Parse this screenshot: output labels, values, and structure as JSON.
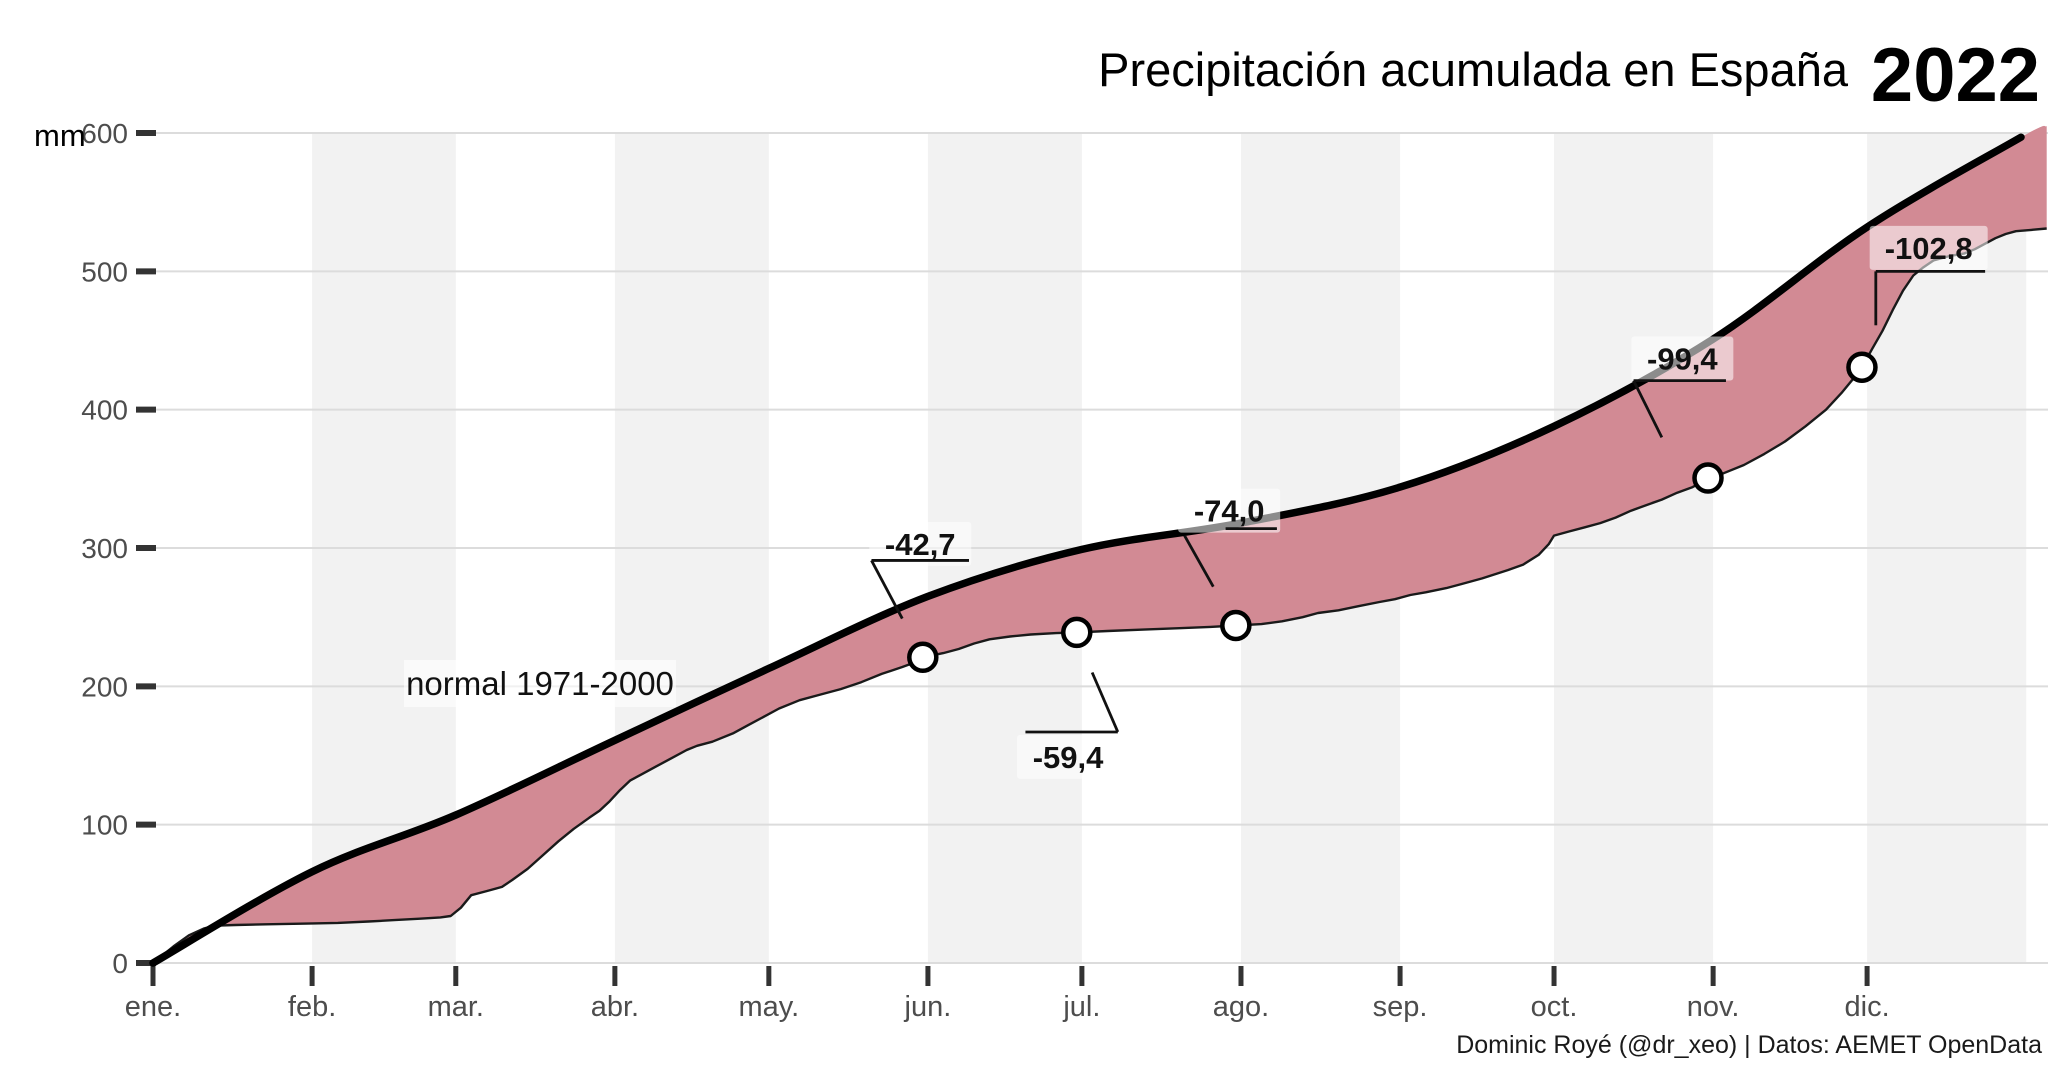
{
  "header": {
    "title": "Precipitación acumulada en España",
    "year": "2022"
  },
  "attribution": "Dominic Royé (@dr_xeo) | Datos: AEMET OpenData",
  "chart_data": {
    "type": "area",
    "title": "Precipitación acumulada en España 2022",
    "ylabel": "mm",
    "ylim": [
      0,
      600
    ],
    "y_ticks": [
      0,
      100,
      200,
      300,
      400,
      500,
      600
    ],
    "x_months": [
      {
        "label": "ene.",
        "start": 0,
        "shaded": false
      },
      {
        "label": "feb.",
        "start": 31,
        "shaded": true
      },
      {
        "label": "mar.",
        "start": 59,
        "shaded": false
      },
      {
        "label": "abr.",
        "start": 90,
        "shaded": true
      },
      {
        "label": "may.",
        "start": 120,
        "shaded": false
      },
      {
        "label": "jun.",
        "start": 151,
        "shaded": true
      },
      {
        "label": "jul.",
        "start": 181,
        "shaded": false
      },
      {
        "label": "ago.",
        "start": 212,
        "shaded": true
      },
      {
        "label": "sep.",
        "start": 243,
        "shaded": false
      },
      {
        "label": "oct.",
        "start": 273,
        "shaded": true
      },
      {
        "label": "nov.",
        "start": 304,
        "shaded": false
      },
      {
        "label": "dic.",
        "start": 334,
        "shaded": true
      }
    ],
    "year_end_day": 365,
    "normal_label": "normal 1971-2000",
    "series": [
      {
        "name": "normal 1971-2000",
        "line_end_day": 364,
        "points": [
          [
            0,
            0
          ],
          [
            31,
            66
          ],
          [
            59,
            107
          ],
          [
            90,
            161
          ],
          [
            120,
            213
          ],
          [
            151,
            265
          ],
          [
            181,
            299
          ],
          [
            212,
            318
          ],
          [
            243,
            344
          ],
          [
            273,
            388
          ],
          [
            304,
            451
          ],
          [
            334,
            532
          ],
          [
            364,
            597
          ],
          [
            369,
            605
          ]
        ]
      },
      {
        "name": "2022",
        "points": [
          [
            0,
            0
          ],
          [
            2,
            6
          ],
          [
            4,
            12
          ],
          [
            7,
            20
          ],
          [
            10,
            25
          ],
          [
            12,
            27
          ],
          [
            16,
            27.5
          ],
          [
            22,
            28
          ],
          [
            30,
            28.5
          ],
          [
            36,
            29
          ],
          [
            42,
            30
          ],
          [
            47,
            31
          ],
          [
            52,
            32
          ],
          [
            56,
            33
          ],
          [
            58,
            34
          ],
          [
            60,
            40
          ],
          [
            62,
            49
          ],
          [
            65,
            52
          ],
          [
            68,
            55
          ],
          [
            70,
            60
          ],
          [
            73,
            68
          ],
          [
            76,
            78
          ],
          [
            79,
            88
          ],
          [
            82,
            97
          ],
          [
            85,
            105
          ],
          [
            87,
            110
          ],
          [
            89,
            117
          ],
          [
            91,
            125
          ],
          [
            93,
            132
          ],
          [
            95,
            136
          ],
          [
            98,
            142
          ],
          [
            101,
            148
          ],
          [
            104,
            154
          ],
          [
            106,
            157
          ],
          [
            109,
            160
          ],
          [
            113,
            166
          ],
          [
            116,
            172
          ],
          [
            119,
            178
          ],
          [
            122,
            184
          ],
          [
            126,
            190
          ],
          [
            130,
            194
          ],
          [
            134,
            198
          ],
          [
            138,
            203
          ],
          [
            142,
            209
          ],
          [
            146,
            214
          ],
          [
            149,
            218
          ],
          [
            150,
            221
          ],
          [
            154,
            224
          ],
          [
            157,
            227
          ],
          [
            160,
            231
          ],
          [
            163,
            234
          ],
          [
            167,
            236
          ],
          [
            171,
            237.5
          ],
          [
            176,
            238.5
          ],
          [
            180,
            239
          ],
          [
            186,
            240
          ],
          [
            193,
            241
          ],
          [
            200,
            242
          ],
          [
            206,
            243
          ],
          [
            211,
            244
          ],
          [
            216,
            245
          ],
          [
            220,
            247
          ],
          [
            224,
            250
          ],
          [
            227,
            253
          ],
          [
            231,
            255
          ],
          [
            235,
            258
          ],
          [
            239,
            261
          ],
          [
            242,
            263
          ],
          [
            245,
            266
          ],
          [
            248,
            268
          ],
          [
            252,
            271
          ],
          [
            255,
            274
          ],
          [
            259,
            278
          ],
          [
            264,
            284
          ],
          [
            267,
            288
          ],
          [
            270,
            295
          ],
          [
            272,
            303
          ],
          [
            273,
            309
          ],
          [
            276,
            312
          ],
          [
            279,
            315
          ],
          [
            282,
            318
          ],
          [
            285,
            322
          ],
          [
            288,
            327
          ],
          [
            291,
            331
          ],
          [
            294,
            335
          ],
          [
            297,
            340
          ],
          [
            300,
            344
          ],
          [
            302,
            348
          ],
          [
            303,
            350.6
          ],
          [
            306,
            354
          ],
          [
            310,
            360
          ],
          [
            314,
            368
          ],
          [
            318,
            377
          ],
          [
            322,
            388
          ],
          [
            326,
            400
          ],
          [
            329,
            412
          ],
          [
            331,
            421
          ],
          [
            333,
            430.7
          ],
          [
            335,
            444
          ],
          [
            337,
            457
          ],
          [
            339,
            472
          ],
          [
            341,
            486
          ],
          [
            343,
            497
          ],
          [
            345,
            503
          ],
          [
            347,
            508
          ],
          [
            350,
            511
          ],
          [
            353,
            513
          ],
          [
            355,
            516
          ],
          [
            357,
            520
          ],
          [
            359,
            524
          ],
          [
            361,
            527
          ],
          [
            363,
            529
          ],
          [
            366,
            530
          ],
          [
            369,
            531
          ]
        ]
      }
    ],
    "markers": [
      {
        "day": 150,
        "value": 221
      },
      {
        "day": 180,
        "value": 239
      },
      {
        "day": 211,
        "value": 244
      },
      {
        "day": 303,
        "value": 350.6
      },
      {
        "day": 333,
        "value": 430.7
      }
    ],
    "annotations": [
      {
        "label": "-42,7",
        "text_at": [
          149.5,
          303
        ],
        "segments": [
          [
            [
              140,
              291
            ],
            [
              159,
              291
            ]
          ],
          [
            [
              140,
              291
            ],
            [
              146,
              249
            ]
          ]
        ]
      },
      {
        "label": "-59,4",
        "text_at": [
          178.3,
          149
        ],
        "segments": [
          [
            [
              170,
              167
            ],
            [
              188,
              167
            ]
          ],
          [
            [
              188,
              167
            ],
            [
              183,
              210
            ]
          ]
        ]
      },
      {
        "label": "-74,0",
        "text_at": [
          209.7,
          327
        ],
        "segments": [
          [
            [
              209,
              314
            ],
            [
              219,
              314
            ]
          ],
          [
            [
              201,
              309
            ],
            [
              206.6,
              272
            ]
          ]
        ]
      },
      {
        "label": "-99,4",
        "text_at": [
          298,
          437
        ],
        "segments": [
          [
            [
              288.5,
              421
            ],
            [
              306.5,
              421
            ]
          ],
          [
            [
              288.5,
              421
            ],
            [
              294,
              380
            ]
          ]
        ]
      },
      {
        "label": "-102,8",
        "text_at": [
          346,
          517
        ],
        "segments": [
          [
            [
              335.7,
              500
            ],
            [
              357,
              500
            ]
          ],
          [
            [
              335.7,
              500
            ],
            [
              335.7,
              461
            ]
          ]
        ]
      }
    ],
    "colors": {
      "deficit_area": "#d28a94",
      "normal_line": "#000000",
      "year_line": "#1a1a1a",
      "band": "#f2f2f2",
      "gridline": "#dcdcdc",
      "axis_text": "#4d4d4d",
      "tick": "#333333",
      "annotation_box": "rgba(255,255,255,0.55)"
    }
  }
}
